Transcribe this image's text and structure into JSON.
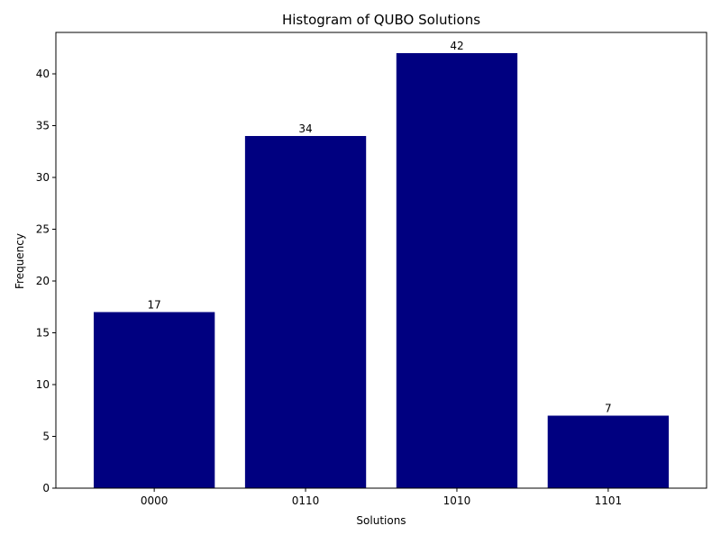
{
  "chart_data": {
    "type": "bar",
    "title": "Histogram of QUBO Solutions",
    "xlabel": "Solutions",
    "ylabel": "Frequency",
    "categories": [
      "0000",
      "0110",
      "1010",
      "1101"
    ],
    "values": [
      17,
      34,
      42,
      7
    ],
    "data_labels": [
      "17",
      "34",
      "42",
      "7"
    ],
    "ylim": [
      0,
      44
    ],
    "yticks": [
      0,
      5,
      10,
      15,
      20,
      25,
      30,
      35,
      40
    ],
    "ytick_labels": [
      "0",
      "5",
      "10",
      "15",
      "20",
      "25",
      "30",
      "35",
      "40"
    ],
    "bar_color": "#000080",
    "grid": false,
    "legend": "none"
  }
}
